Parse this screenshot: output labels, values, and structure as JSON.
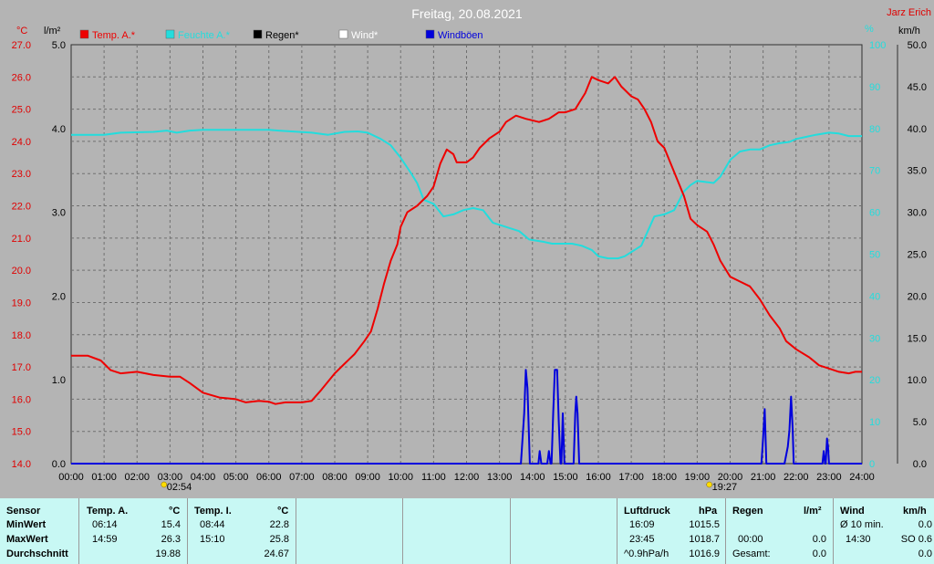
{
  "header": {
    "title": "Freitag, 20.08.2021",
    "author": "Jarz Erich",
    "unit_temp": "°C",
    "unit_rain": "l/m²",
    "unit_humidity": "%",
    "unit_wind": "km/h"
  },
  "colors": {
    "temp": "#ee0000",
    "humidity": "#22dddd",
    "rain": "#000000",
    "wind": "#ffffff",
    "gust": "#0000dd",
    "plot_bg": "#b4b4b4",
    "grid": "#707070",
    "table_bg": "#c8f8f4"
  },
  "chart_data": {
    "type": "line",
    "title": "Freitag, 20.08.2021",
    "legend_position": "top",
    "grid": true,
    "legend": [
      "Temp. A.*",
      "Feuchte A.*",
      "Regen*",
      "Wind*",
      "Windböen"
    ],
    "x_ticks": [
      "00:00",
      "01:00",
      "02:00",
      "03:00",
      "04:00",
      "05:00",
      "06:00",
      "07:00",
      "08:00",
      "09:00",
      "10:00",
      "11:00",
      "12:00",
      "13:00",
      "14:00",
      "15:00",
      "16:00",
      "17:00",
      "18:00",
      "19:00",
      "20:00",
      "21:00",
      "22:00",
      "23:00",
      "24:00"
    ],
    "xlim": [
      0,
      24
    ],
    "axes": {
      "temp": {
        "ylim": [
          14,
          27
        ],
        "ticks": [
          "14.0",
          "15.0",
          "16.0",
          "17.0",
          "18.0",
          "19.0",
          "20.0",
          "21.0",
          "22.0",
          "23.0",
          "24.0",
          "25.0",
          "26.0",
          "27.0"
        ]
      },
      "rain": {
        "ylim": [
          0,
          5
        ],
        "ticks": [
          "0.0",
          "1.0",
          "2.0",
          "3.0",
          "4.0",
          "5.0"
        ]
      },
      "humidity": {
        "ylim": [
          0,
          100
        ],
        "ticks": [
          "0",
          "10",
          "20",
          "30",
          "40",
          "50",
          "60",
          "70",
          "80",
          "90",
          "100"
        ]
      },
      "wind": {
        "ylim": [
          0,
          50
        ],
        "ticks": [
          "0.0",
          "5.0",
          "10.0",
          "15.0",
          "20.0",
          "25.0",
          "30.0",
          "35.0",
          "40.0",
          "45.0",
          "50.0"
        ]
      }
    },
    "sunrise": "02:54",
    "sunset": "19:27",
    "series": [
      {
        "name": "Temp. A.*",
        "axis": "temp",
        "points": [
          [
            0,
            17.35
          ],
          [
            0.5,
            17.35
          ],
          [
            0.9,
            17.2
          ],
          [
            1.2,
            16.9
          ],
          [
            1.5,
            16.8
          ],
          [
            2,
            16.85
          ],
          [
            2.5,
            16.75
          ],
          [
            3,
            16.7
          ],
          [
            3.3,
            16.7
          ],
          [
            3.6,
            16.5
          ],
          [
            4,
            16.2
          ],
          [
            4.5,
            16.05
          ],
          [
            5,
            16.0
          ],
          [
            5.3,
            15.9
          ],
          [
            5.7,
            15.95
          ],
          [
            6,
            15.92
          ],
          [
            6.2,
            15.85
          ],
          [
            6.5,
            15.9
          ],
          [
            7.0,
            15.9
          ],
          [
            7.3,
            15.95
          ],
          [
            7.6,
            16.3
          ],
          [
            8,
            16.8
          ],
          [
            8.3,
            17.1
          ],
          [
            8.6,
            17.4
          ],
          [
            8.9,
            17.8
          ],
          [
            9.1,
            18.1
          ],
          [
            9.3,
            18.8
          ],
          [
            9.5,
            19.6
          ],
          [
            9.7,
            20.3
          ],
          [
            9.9,
            20.8
          ],
          [
            10.0,
            21.35
          ],
          [
            10.2,
            21.8
          ],
          [
            10.5,
            22.0
          ],
          [
            10.8,
            22.3
          ],
          [
            11.0,
            22.6
          ],
          [
            11.2,
            23.3
          ],
          [
            11.4,
            23.75
          ],
          [
            11.6,
            23.6
          ],
          [
            11.7,
            23.35
          ],
          [
            12,
            23.35
          ],
          [
            12.2,
            23.5
          ],
          [
            12.4,
            23.8
          ],
          [
            12.7,
            24.1
          ],
          [
            13,
            24.3
          ],
          [
            13.2,
            24.6
          ],
          [
            13.5,
            24.8
          ],
          [
            13.8,
            24.7
          ],
          [
            14.2,
            24.6
          ],
          [
            14.5,
            24.7
          ],
          [
            14.8,
            24.9
          ],
          [
            15.0,
            24.9
          ],
          [
            15.3,
            25.0
          ],
          [
            15.6,
            25.5
          ],
          [
            15.8,
            26.0
          ],
          [
            16.0,
            25.9
          ],
          [
            16.3,
            25.8
          ],
          [
            16.5,
            26.0
          ],
          [
            16.7,
            25.7
          ],
          [
            17.0,
            25.4
          ],
          [
            17.2,
            25.3
          ],
          [
            17.4,
            25.0
          ],
          [
            17.6,
            24.6
          ],
          [
            17.8,
            24.0
          ],
          [
            18.0,
            23.8
          ],
          [
            18.2,
            23.3
          ],
          [
            18.4,
            22.8
          ],
          [
            18.6,
            22.3
          ],
          [
            18.8,
            21.6
          ],
          [
            19.0,
            21.4
          ],
          [
            19.3,
            21.2
          ],
          [
            19.5,
            20.8
          ],
          [
            19.7,
            20.3
          ],
          [
            20.0,
            19.8
          ],
          [
            20.3,
            19.65
          ],
          [
            20.6,
            19.5
          ],
          [
            20.9,
            19.1
          ],
          [
            21.2,
            18.6
          ],
          [
            21.5,
            18.2
          ],
          [
            21.7,
            17.8
          ],
          [
            22.0,
            17.55
          ],
          [
            22.4,
            17.3
          ],
          [
            22.7,
            17.05
          ],
          [
            23.0,
            16.95
          ],
          [
            23.3,
            16.85
          ],
          [
            23.6,
            16.8
          ],
          [
            23.8,
            16.85
          ],
          [
            24.0,
            16.85
          ]
        ]
      },
      {
        "name": "Feuchte A.*",
        "axis": "humidity",
        "points": [
          [
            0,
            78.5
          ],
          [
            1,
            78.5
          ],
          [
            1.5,
            79.0
          ],
          [
            2.5,
            79.2
          ],
          [
            2.9,
            79.5
          ],
          [
            3.2,
            79.0
          ],
          [
            3.6,
            79.5
          ],
          [
            4,
            79.7
          ],
          [
            5,
            79.7
          ],
          [
            6,
            79.7
          ],
          [
            6.3,
            79.5
          ],
          [
            7.3,
            79.0
          ],
          [
            7.8,
            78.5
          ],
          [
            8.3,
            79.2
          ],
          [
            8.7,
            79.3
          ],
          [
            9.0,
            79.0
          ],
          [
            9.4,
            77.5
          ],
          [
            9.7,
            76.0
          ],
          [
            10.0,
            73.0
          ],
          [
            10.3,
            69.5
          ],
          [
            10.5,
            67.0
          ],
          [
            10.7,
            63.0
          ],
          [
            11.0,
            62.0
          ],
          [
            11.3,
            59.0
          ],
          [
            11.6,
            59.5
          ],
          [
            11.9,
            60.5
          ],
          [
            12.2,
            61.0
          ],
          [
            12.5,
            60.5
          ],
          [
            12.8,
            57.5
          ],
          [
            13.2,
            56.5
          ],
          [
            13.6,
            55.5
          ],
          [
            13.9,
            53.5
          ],
          [
            14.3,
            53.0
          ],
          [
            14.6,
            52.5
          ],
          [
            14.9,
            52.5
          ],
          [
            15.2,
            52.5
          ],
          [
            15.5,
            52.0
          ],
          [
            15.8,
            51.0
          ],
          [
            16.0,
            49.5
          ],
          [
            16.3,
            49.0
          ],
          [
            16.6,
            49.0
          ],
          [
            16.8,
            49.5
          ],
          [
            17.0,
            50.5
          ],
          [
            17.3,
            52.0
          ],
          [
            17.5,
            55.5
          ],
          [
            17.7,
            59.0
          ],
          [
            18.0,
            59.5
          ],
          [
            18.3,
            60.5
          ],
          [
            18.6,
            65.0
          ],
          [
            18.8,
            66.5
          ],
          [
            19.0,
            67.5
          ],
          [
            19.3,
            67.2
          ],
          [
            19.5,
            67.0
          ],
          [
            19.7,
            68.5
          ],
          [
            20.0,
            72.5
          ],
          [
            20.3,
            74.5
          ],
          [
            20.6,
            75.0
          ],
          [
            20.9,
            75.0
          ],
          [
            21.2,
            76.0
          ],
          [
            21.5,
            76.5
          ],
          [
            21.8,
            76.8
          ],
          [
            22.0,
            77.5
          ],
          [
            22.3,
            78.0
          ],
          [
            22.6,
            78.5
          ],
          [
            23.0,
            79.0
          ],
          [
            23.3,
            78.8
          ],
          [
            23.6,
            78.2
          ],
          [
            24.0,
            78.2
          ]
        ]
      },
      {
        "name": "Windböen",
        "axis": "wind",
        "points": [
          [
            0,
            0
          ],
          [
            13.65,
            0
          ],
          [
            13.75,
            6
          ],
          [
            13.8,
            11.2
          ],
          [
            13.85,
            9
          ],
          [
            13.92,
            0
          ],
          [
            14.18,
            0
          ],
          [
            14.22,
            1.5
          ],
          [
            14.27,
            0
          ],
          [
            14.45,
            0
          ],
          [
            14.5,
            1.5
          ],
          [
            14.55,
            0
          ],
          [
            14.58,
            0
          ],
          [
            14.63,
            6
          ],
          [
            14.68,
            11.2
          ],
          [
            14.75,
            11.2
          ],
          [
            14.8,
            5
          ],
          [
            14.85,
            0
          ],
          [
            14.88,
            0
          ],
          [
            14.92,
            6
          ],
          [
            14.97,
            0
          ],
          [
            15.25,
            0
          ],
          [
            15.3,
            6
          ],
          [
            15.33,
            8
          ],
          [
            15.37,
            6
          ],
          [
            15.42,
            0
          ],
          [
            20.95,
            0
          ],
          [
            21.0,
            3
          ],
          [
            21.05,
            6.5
          ],
          [
            21.1,
            0
          ],
          [
            21.65,
            0
          ],
          [
            21.75,
            2
          ],
          [
            21.8,
            4
          ],
          [
            21.85,
            8
          ],
          [
            21.9,
            4
          ],
          [
            21.93,
            0
          ],
          [
            22.8,
            0
          ],
          [
            22.84,
            1.5
          ],
          [
            22.88,
            0
          ],
          [
            22.9,
            0
          ],
          [
            22.94,
            3
          ],
          [
            22.97,
            2
          ],
          [
            23.0,
            0
          ],
          [
            24,
            0
          ]
        ]
      }
    ]
  },
  "table": {
    "sensor": {
      "header": "Sensor",
      "rows": [
        "MinWert",
        "MaxWert",
        "Durchschnitt"
      ]
    },
    "temp_a": {
      "header": "Temp. A.",
      "unit": "°C",
      "rows": [
        [
          "06:14",
          "15.4"
        ],
        [
          "14:59",
          "26.3"
        ],
        [
          "",
          "19.88"
        ]
      ]
    },
    "temp_i": {
      "header": "Temp. I.",
      "unit": "°C",
      "rows": [
        [
          "08:44",
          "22.8"
        ],
        [
          "15:10",
          "25.8"
        ],
        [
          "",
          "24.67"
        ]
      ]
    },
    "pressure": {
      "header": "Luftdruck",
      "unit": "hPa",
      "rows": [
        [
          "16:09",
          "1015.5"
        ],
        [
          "23:45",
          "1018.7"
        ],
        [
          "^0.9hPa/h",
          "1016.9"
        ]
      ]
    },
    "rain": {
      "header": "Regen",
      "unit": "l/m²",
      "rows": [
        [
          "",
          ""
        ],
        [
          "00:00",
          "0.0"
        ],
        [
          "Gesamt:",
          "0.0"
        ]
      ]
    },
    "wind": {
      "header": "Wind",
      "unit": "km/h",
      "rows": [
        [
          "Ø 10 min.",
          "0.0"
        ],
        [
          "14:30",
          "SO 0.6"
        ],
        [
          "",
          "0.0"
        ]
      ]
    }
  }
}
